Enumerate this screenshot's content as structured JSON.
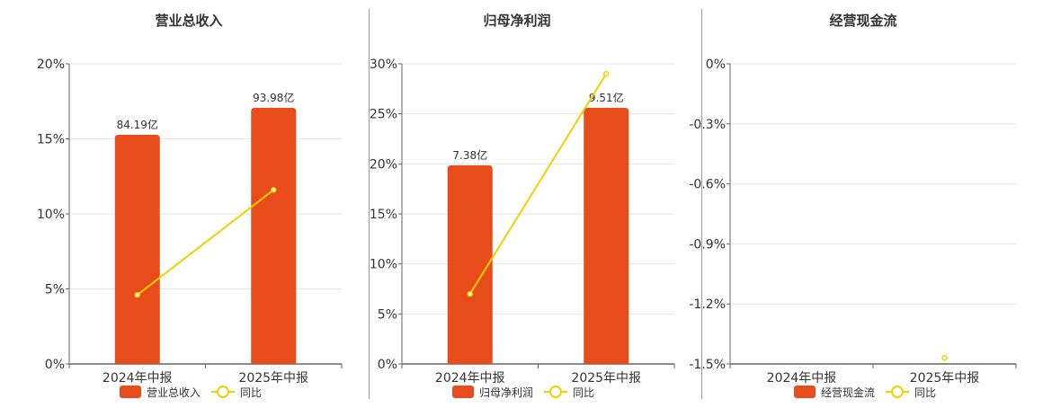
{
  "colors": {
    "bar": "#e84c1a",
    "line": "#f2d000",
    "grid": "#e6e6ea",
    "axis": "#666666",
    "text": "#333333"
  },
  "chart_data": [
    {
      "type": "bar",
      "title": "营业总收入",
      "categories": [
        "2024年中报",
        "2025年中报"
      ],
      "bar_series": {
        "name": "营业总收入",
        "values": [
          84.19,
          93.98
        ],
        "labels": [
          "84.19亿",
          "93.98亿"
        ]
      },
      "line_series": {
        "name": "同比",
        "values": [
          4.6,
          11.6
        ]
      },
      "y_ticks": [
        "20%",
        "15%",
        "10%",
        "5%",
        "0%"
      ],
      "ylim": [
        0,
        20
      ],
      "grid": true,
      "legend": "bottom"
    },
    {
      "type": "bar",
      "title": "归母净利润",
      "categories": [
        "2024年中报",
        "2025年中报"
      ],
      "bar_series": {
        "name": "归母净利润",
        "values": [
          7.38,
          9.51
        ],
        "labels": [
          "7.38亿",
          "9.51亿"
        ]
      },
      "line_series": {
        "name": "同比",
        "values": [
          7.0,
          29.0
        ]
      },
      "y_ticks": [
        "30%",
        "25%",
        "20%",
        "15%",
        "10%",
        "5%",
        "0%"
      ],
      "ylim": [
        0,
        30
      ],
      "grid": true,
      "legend": "bottom"
    },
    {
      "type": "bar",
      "title": "经营现金流",
      "categories": [
        "2024年中报",
        "2025年中报"
      ],
      "bar_series": {
        "name": "经营现金流",
        "values": [
          null,
          null
        ],
        "labels": [
          "",
          ""
        ]
      },
      "line_series": {
        "name": "同比",
        "values": [
          null,
          -1.47
        ]
      },
      "y_ticks": [
        "0%",
        "-0.3%",
        "-0.6%",
        "-0.9%",
        "-1.2%",
        "-1.5%"
      ],
      "ylim": [
        -1.5,
        0
      ],
      "grid": true,
      "legend": "bottom"
    }
  ]
}
